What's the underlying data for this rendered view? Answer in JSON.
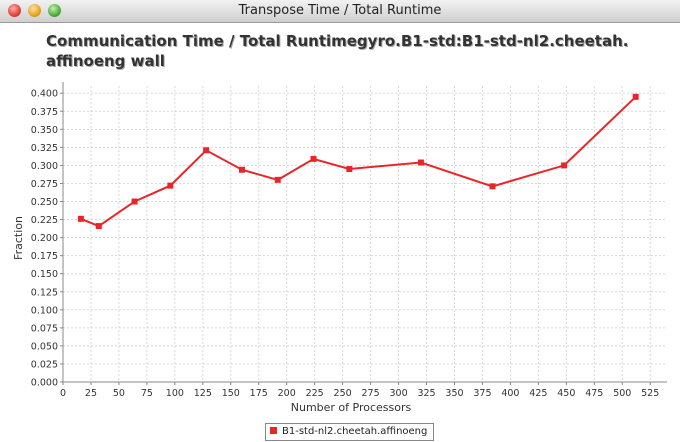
{
  "window": {
    "title": "Transpose Time / Total Runtime"
  },
  "colors": {
    "series": "#e8262a",
    "grid": "#d8d8d8",
    "axis": "#888888"
  },
  "chart_data": {
    "type": "line",
    "title": "Communication Time / Total Runtimegyro.B1-std:B1-std-nl2.cheetah.\naffinoeng wall",
    "xlabel": "Number of Processors",
    "ylabel": "Fraction",
    "xlim": [
      0,
      540
    ],
    "ylim": [
      0,
      0.41
    ],
    "xticks": [
      0,
      25,
      50,
      75,
      100,
      125,
      150,
      175,
      200,
      225,
      250,
      275,
      300,
      325,
      350,
      375,
      400,
      425,
      450,
      475,
      500,
      525
    ],
    "yticks": [
      0.0,
      0.025,
      0.05,
      0.075,
      0.1,
      0.125,
      0.15,
      0.175,
      0.2,
      0.225,
      0.25,
      0.275,
      0.3,
      0.325,
      0.35,
      0.375,
      0.4
    ],
    "grid": true,
    "legend_position": "bottom",
    "series": [
      {
        "name": "B1-std-nl2.cheetah.affinoeng",
        "x": [
          16,
          32,
          64,
          96,
          128,
          160,
          192,
          224,
          256,
          320,
          384,
          448,
          512
        ],
        "y": [
          0.226,
          0.216,
          0.25,
          0.272,
          0.321,
          0.294,
          0.28,
          0.309,
          0.295,
          0.304,
          0.271,
          0.3,
          0.395
        ]
      }
    ]
  }
}
